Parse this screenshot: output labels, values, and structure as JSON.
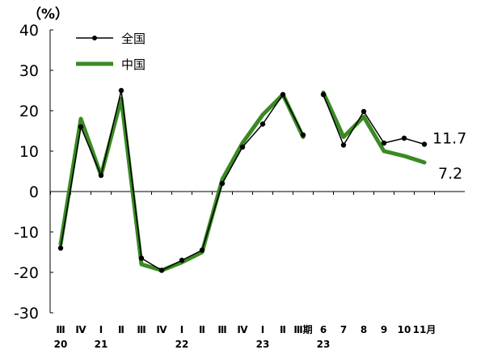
{
  "chart_data": {
    "type": "line",
    "unit_label": "（%）",
    "ylim": [
      -30,
      40
    ],
    "y_ticks": [
      "40",
      "30",
      "20",
      "10",
      "0",
      "-10",
      "-20",
      "-30"
    ],
    "y_tick_values": [
      40,
      30,
      20,
      10,
      0,
      -10,
      -20,
      -30
    ],
    "categories": [
      "Ⅲ",
      "Ⅳ",
      "Ⅰ",
      "Ⅱ",
      "Ⅲ",
      "Ⅳ",
      "Ⅰ",
      "Ⅱ",
      "Ⅲ",
      "Ⅳ",
      "Ⅰ",
      "Ⅱ",
      "Ⅲ期",
      "6",
      "7",
      "8",
      "9",
      "10",
      "11月"
    ],
    "year_labels": [
      {
        "label": "20",
        "at": 0
      },
      {
        "label": "21",
        "at": 2
      },
      {
        "label": "22",
        "at": 6
      },
      {
        "label": "23",
        "at": 10
      },
      {
        "label": "23",
        "at": 13
      }
    ],
    "gap_after_index": 12,
    "series": [
      {
        "name": "全国",
        "color": "#000000",
        "values": [
          -14,
          16,
          4,
          25,
          -16.5,
          -19.5,
          -17,
          -14.5,
          2,
          11,
          16.7,
          24,
          14,
          24,
          11.5,
          19.8,
          12,
          13.2,
          11.7
        ]
      },
      {
        "name": "中国",
        "color": "#3a8a23",
        "values": [
          -13,
          18,
          4,
          23,
          -18,
          -19.5,
          -17.5,
          -15,
          3,
          12,
          19,
          24,
          13.5,
          24.5,
          13.5,
          18.5,
          10,
          8.8,
          7.2
        ]
      }
    ],
    "end_labels": [
      "11.7",
      "7.2"
    ],
    "legend_position": "top-left",
    "grid": false
  }
}
